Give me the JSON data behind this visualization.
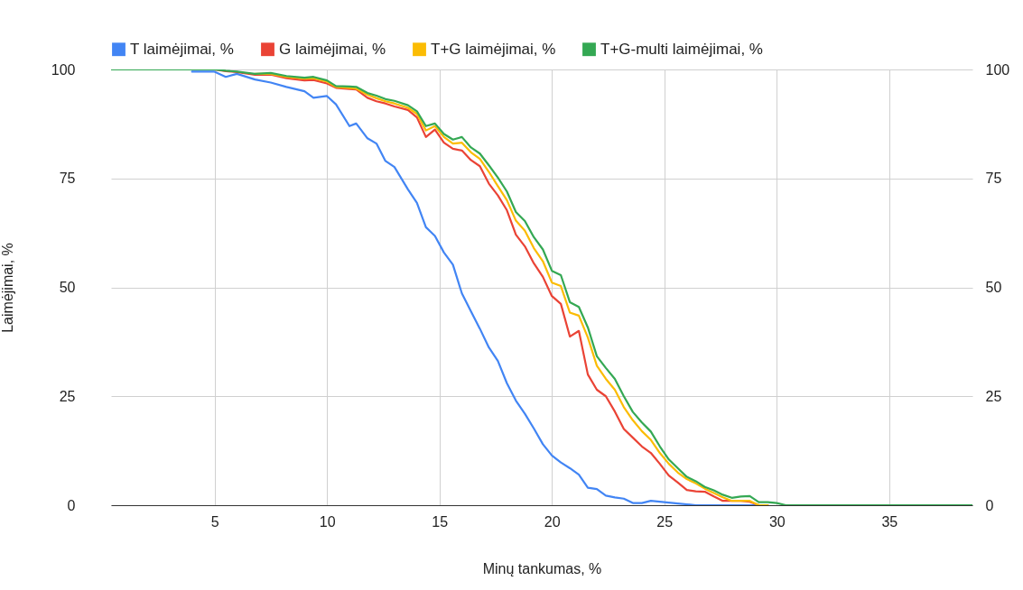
{
  "chart_data": {
    "type": "line",
    "xlabel": "Minų tankumas, %",
    "ylabel": "Laimėjimai, %",
    "x": [
      0.4,
      2,
      4,
      5,
      5.5,
      6,
      6.8,
      7.5,
      8.2,
      9,
      9.4,
      10,
      10.4,
      11,
      11.3,
      11.8,
      12.2,
      12.6,
      13,
      13.6,
      14,
      14.4,
      14.8,
      15.2,
      15.6,
      16,
      16.4,
      16.8,
      17.2,
      17.6,
      18,
      18.4,
      18.8,
      19.2,
      19.6,
      20,
      20.4,
      20.8,
      21.2,
      21.6,
      22,
      22.4,
      22.8,
      23.2,
      23.6,
      24,
      24.4,
      24.8,
      25.2,
      25.6,
      26,
      26.4,
      26.8,
      27.2,
      27.6,
      28,
      28.4,
      28.8,
      29.2,
      29.6,
      30,
      30.4,
      32,
      34,
      36,
      38.7
    ],
    "series": [
      {
        "name": "T laimėjimai, %",
        "color": "#4285f4",
        "values": [
          null,
          null,
          99.5,
          99.5,
          98.3,
          99,
          97.7,
          97,
          96,
          95,
          93.5,
          93.9,
          92,
          87,
          87.6,
          84.2,
          83,
          79,
          77.6,
          72.5,
          69.4,
          63.8,
          61.8,
          58,
          55.2,
          48.6,
          44.5,
          40.5,
          36.2,
          33.1,
          28,
          24,
          21,
          17.6,
          14,
          11.4,
          9.8,
          8.5,
          7,
          4,
          3.7,
          2.2,
          1.8,
          1.5,
          0.5,
          0.5,
          1,
          0.8,
          0.6,
          0.4,
          0.2,
          0,
          0,
          0,
          0,
          0,
          0,
          0,
          0,
          0,
          null,
          null,
          null,
          null,
          null,
          null
        ]
      },
      {
        "name": "G laimėjimai, %",
        "color": "#ea4335",
        "values": [
          null,
          null,
          null,
          100,
          99.6,
          99.4,
          98.8,
          98.8,
          98,
          97.5,
          97.6,
          96.8,
          95.8,
          95.5,
          95.4,
          93.5,
          92.7,
          92.2,
          91.5,
          90.7,
          89,
          84.5,
          86.2,
          83.2,
          81.8,
          81.4,
          79.2,
          77.8,
          73.8,
          71.1,
          67.7,
          62.1,
          59.4,
          55.5,
          52.4,
          48,
          46.2,
          38.7,
          40,
          30,
          26.5,
          25,
          21.5,
          17.5,
          15.5,
          13.5,
          12,
          9.5,
          6.8,
          5.2,
          3.5,
          3.2,
          3.1,
          2,
          1,
          1,
          1,
          0.8,
          0,
          0,
          null,
          null,
          null,
          null,
          null,
          null
        ]
      },
      {
        "name": "T+G laimėjimai, %",
        "color": "#fbbc04",
        "values": [
          null,
          null,
          null,
          null,
          null,
          null,
          99,
          99,
          98.3,
          97.9,
          98,
          97.2,
          96,
          95.8,
          95.6,
          94.2,
          93.4,
          92.7,
          92.2,
          91.2,
          89.8,
          86,
          87,
          84.5,
          83,
          83.2,
          81,
          79.5,
          76.5,
          73.2,
          70,
          65.3,
          63,
          59,
          56,
          51.1,
          50.3,
          44.2,
          43.5,
          38.5,
          32,
          29,
          26.5,
          22.5,
          19.5,
          17,
          15,
          12,
          9.5,
          7.5,
          6,
          5,
          3.8,
          2.8,
          1.8,
          1,
          1,
          1,
          0,
          0,
          null,
          null,
          null,
          null,
          null,
          null
        ]
      },
      {
        "name": "T+G-multi laimėjimai, %",
        "color": "#34a853",
        "values": [
          100,
          100,
          100,
          100,
          99.7,
          99.5,
          99,
          99.2,
          98.5,
          98.1,
          98.3,
          97.5,
          96.2,
          96.1,
          96,
          94.6,
          94,
          93.2,
          92.8,
          91.8,
          90.4,
          87,
          87.6,
          85.2,
          83.9,
          84.5,
          82.1,
          80.7,
          78,
          75.2,
          72,
          67.3,
          65.2,
          61.5,
          58.7,
          53.8,
          52.8,
          46.6,
          45.5,
          40.8,
          34.2,
          31.5,
          29,
          25,
          21.4,
          19,
          16.9,
          13.5,
          10.5,
          8.5,
          6.5,
          5.5,
          4.2,
          3.4,
          2.4,
          1.7,
          2,
          2.1,
          0.7,
          0.7,
          0.5,
          0,
          0,
          0,
          0,
          0
        ]
      }
    ],
    "xlim": [
      0.4,
      38.7
    ],
    "xticks": [
      5,
      10,
      15,
      20,
      25,
      30,
      35
    ],
    "ylim": [
      0,
      100
    ],
    "yticks": [
      0,
      25,
      50,
      75,
      100
    ],
    "y2lim": [
      0,
      100
    ],
    "y2ticks": [
      0,
      25,
      50,
      75,
      100
    ],
    "grid": true,
    "legend": "top",
    "marker": "none",
    "line_style": "solid"
  }
}
